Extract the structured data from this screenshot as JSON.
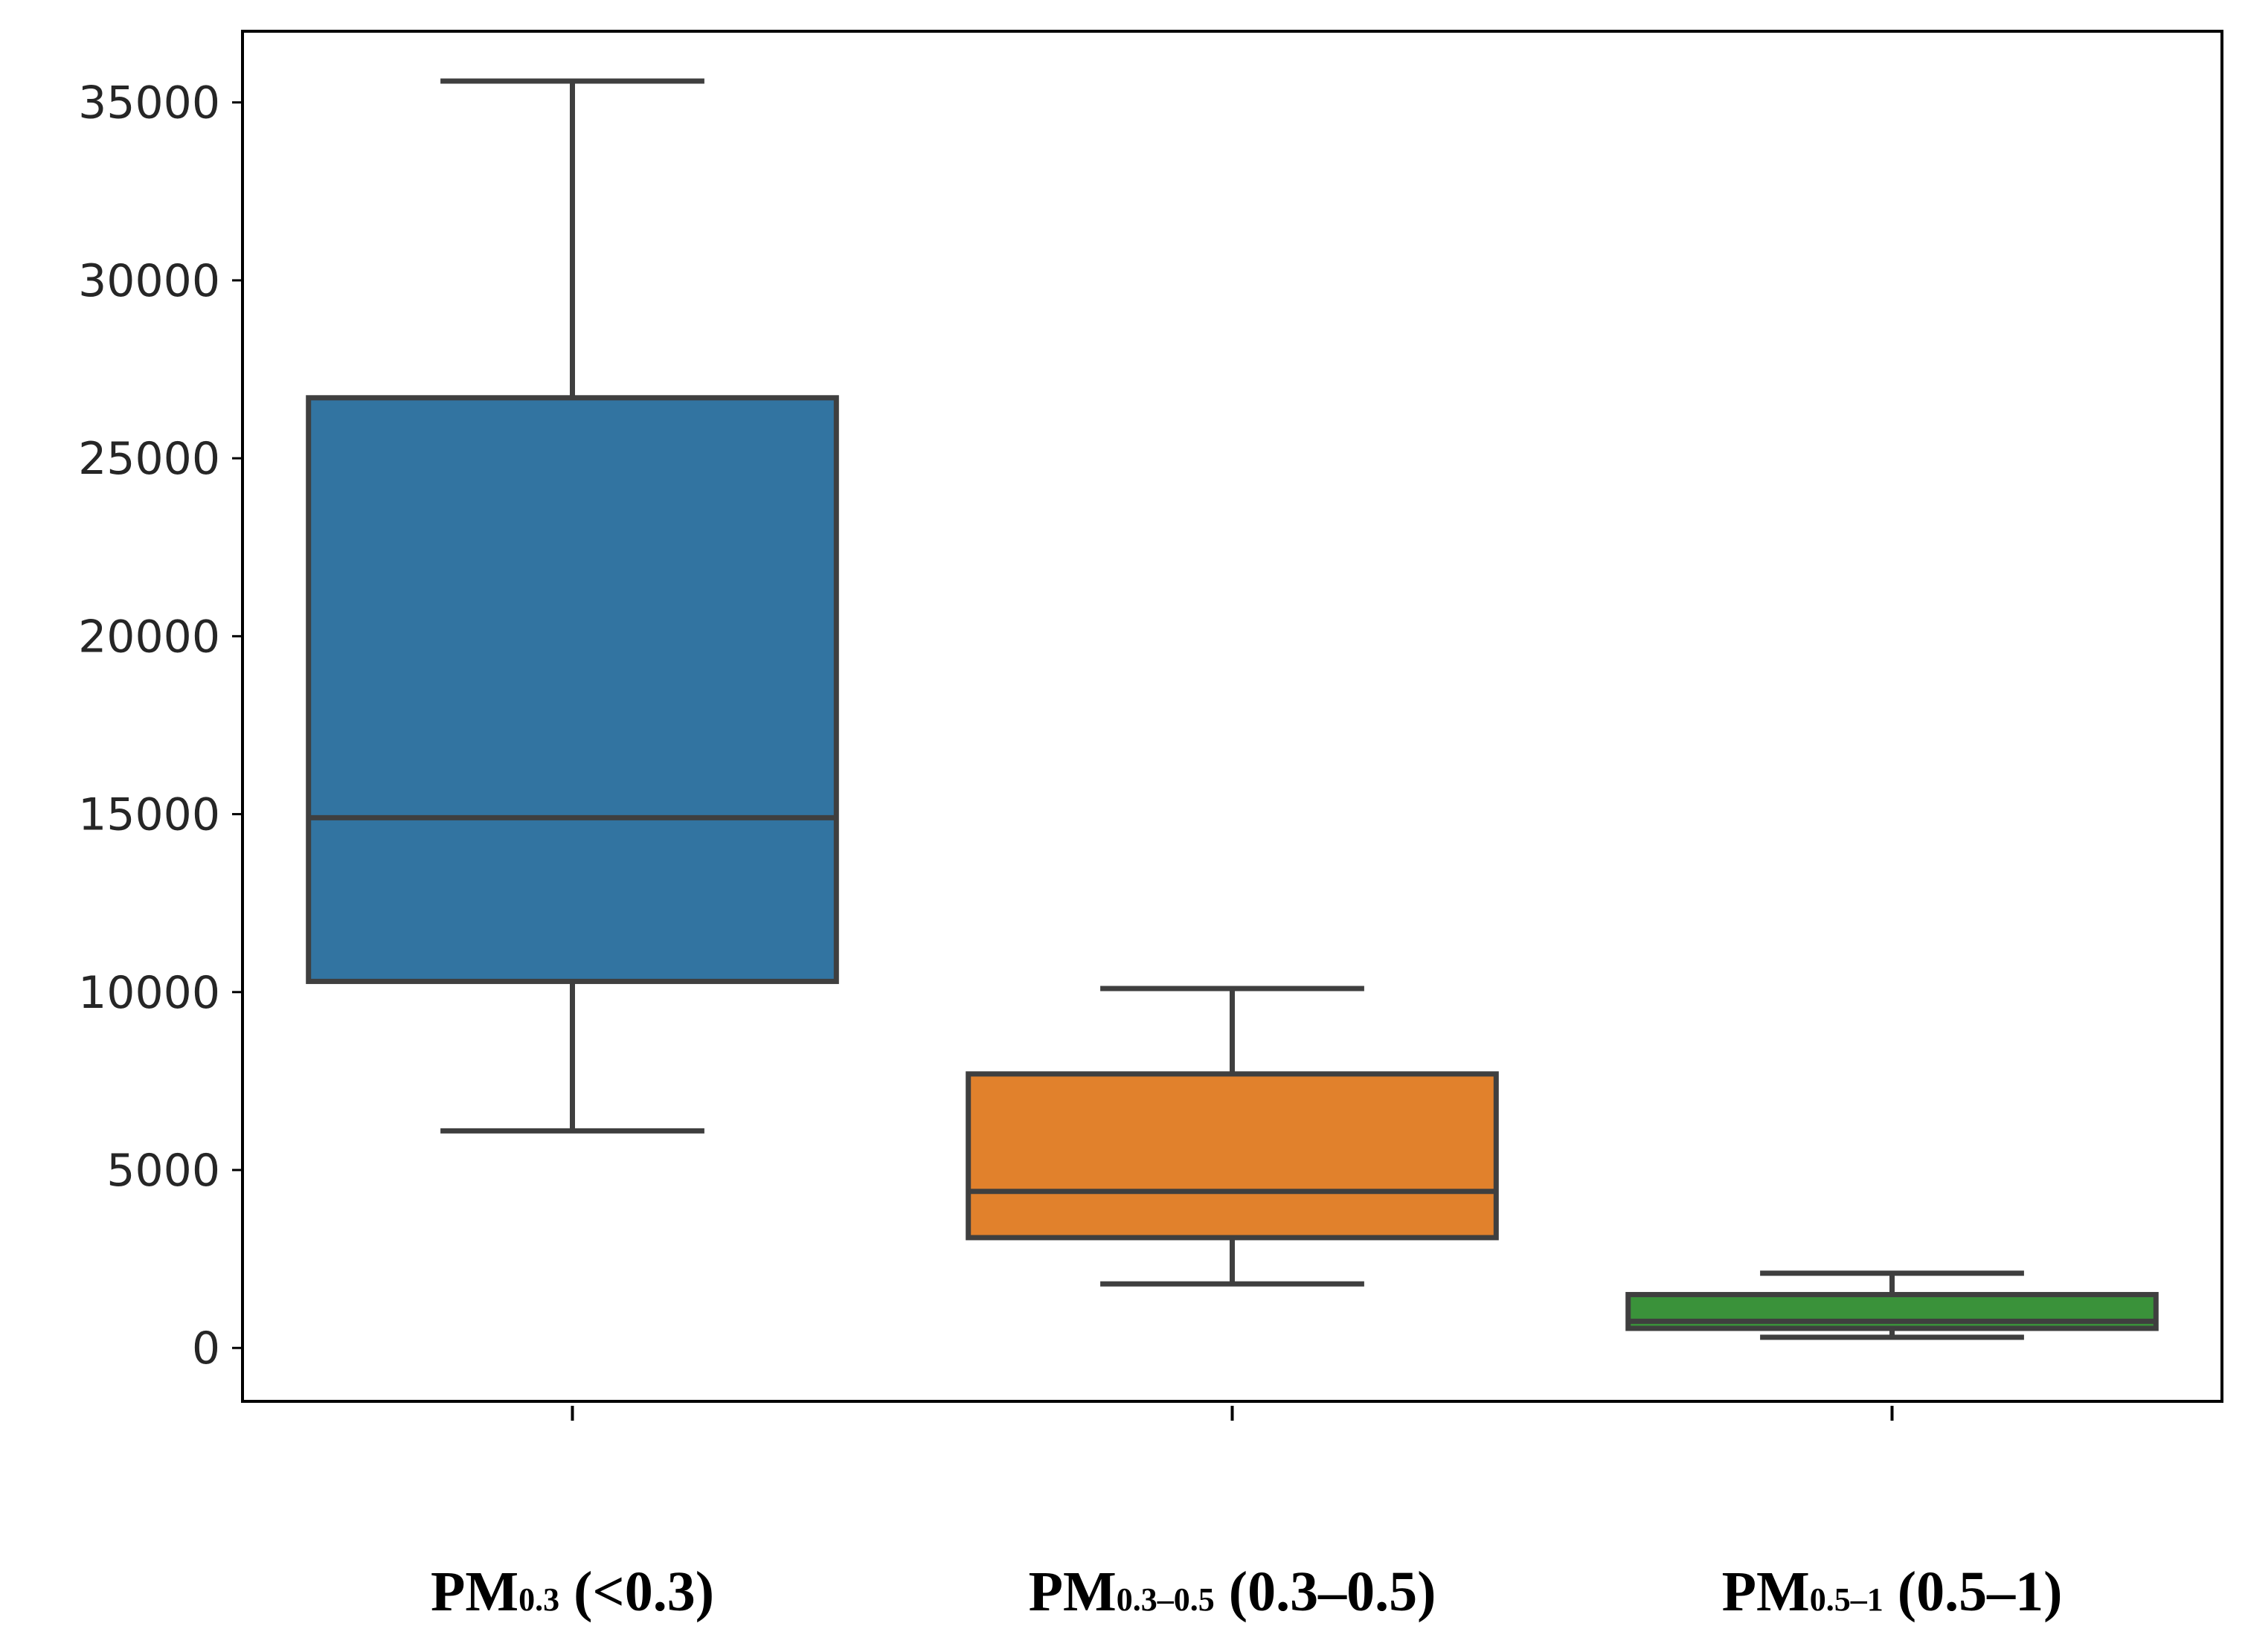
{
  "chart_data": {
    "type": "boxplot",
    "title": "",
    "xlabel": "",
    "ylabel": "",
    "ylim": [
      -1500,
      37000
    ],
    "yticks": [
      0,
      5000,
      10000,
      15000,
      20000,
      25000,
      30000,
      35000
    ],
    "ytick_labels": [
      "0",
      "5000",
      "10000",
      "15000",
      "20000",
      "25000",
      "30000",
      "35000"
    ],
    "grid": false,
    "series": [
      {
        "name": "PM0.3 (<0.3)",
        "label_main": "PM",
        "label_sub": "0.3",
        "label_rest": " (<0.3)",
        "color": "#3274a1",
        "whisker_low": 6100,
        "q1": 10300,
        "median": 14900,
        "q3": 26700,
        "whisker_high": 35600
      },
      {
        "name": "PM0.3–0.5 (0.3–0.5)",
        "label_main": "PM",
        "label_sub": "0.3–0.5",
        "label_rest": " (0.3–0.5)",
        "color": "#e1812c",
        "whisker_low": 1800,
        "q1": 3100,
        "median": 4400,
        "q3": 7700,
        "whisker_high": 10100
      },
      {
        "name": "PM0.5–1 (0.5–1)",
        "label_main": "PM",
        "label_sub": "0.5–1",
        "label_rest": " (0.5–1)",
        "color": "#3a923a",
        "whisker_low": 300,
        "q1": 550,
        "median": 750,
        "q3": 1500,
        "whisker_high": 2100
      }
    ],
    "colors": {
      "outline": "#3f3f3f",
      "axes": "#000000",
      "text": "#262626"
    }
  }
}
